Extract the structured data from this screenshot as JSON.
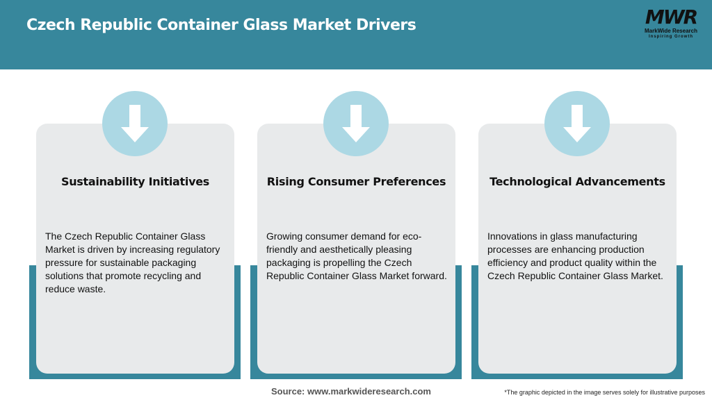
{
  "header": {
    "title": "Czech Republic Container Glass Market Drivers",
    "accent": "#37879c"
  },
  "logo": {
    "mark": "MWR",
    "name": "MarkWide Research",
    "tagline": "Inspiring Growth"
  },
  "cards": [
    {
      "icon": "arrow-down-icon",
      "title": "Sustainability Initiatives",
      "text": "The Czech Republic Container Glass Market is driven by increasing regulatory pressure for sustainable packaging solutions that promote recycling and reduce waste."
    },
    {
      "icon": "arrow-down-icon",
      "title": "Rising Consumer Preferences",
      "text": "Growing consumer demand for eco-friendly and aesthetically pleasing packaging is propelling the Czech Republic Container Glass Market forward."
    },
    {
      "icon": "arrow-down-icon",
      "title": "Technological Advancements",
      "text": "Innovations in glass manufacturing processes are enhancing production efficiency and product quality within the Czech Republic Container Glass Market."
    }
  ],
  "footer": {
    "source": "Source: www.markwideresearch.com",
    "disclaimer": "*The graphic depicted in the image serves solely for illustrative purposes"
  }
}
